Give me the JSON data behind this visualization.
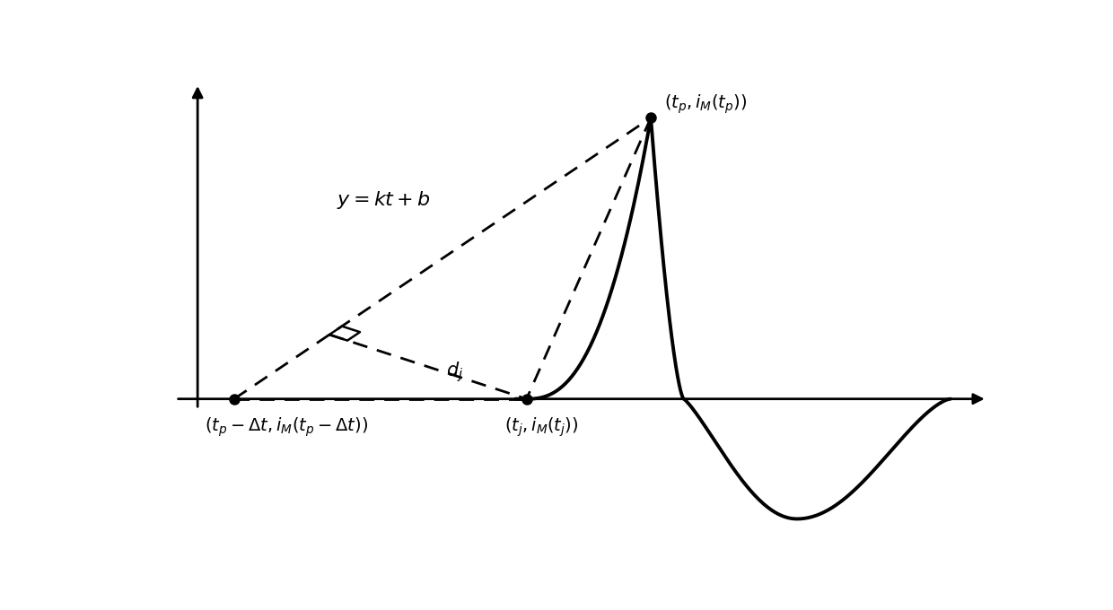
{
  "background_color": "#ffffff",
  "line_color": "#000000",
  "dashed_color": "#000000",
  "point_color": "#000000",
  "fig_width": 12.4,
  "fig_height": 6.8,
  "dpi": 100,
  "xlim": [
    -0.8,
    11.0
  ],
  "ylim": [
    -4.2,
    9.5
  ],
  "pt_left_x": 0.5,
  "pt_left_y": 0.0,
  "pt_left_label": "$(t_p-\\Delta t, i_M(t_p-\\Delta t))$",
  "pt_mid_x": 4.5,
  "pt_mid_y": 0.0,
  "pt_mid_label": "$(t_j, i_M(t_j))$",
  "pt_top_x": 6.2,
  "pt_top_y": 8.2,
  "pt_top_label": "$(t_p, i_M(t_p))$",
  "line_eq_label": "$y = kt + b$",
  "line_eq_x": 1.9,
  "line_eq_y": 5.8,
  "dj_label": "$d_j$",
  "axis_x_end": 10.8,
  "axis_y_end": 9.2,
  "axis_x_start": 0.0,
  "axis_y_start": 0.0
}
